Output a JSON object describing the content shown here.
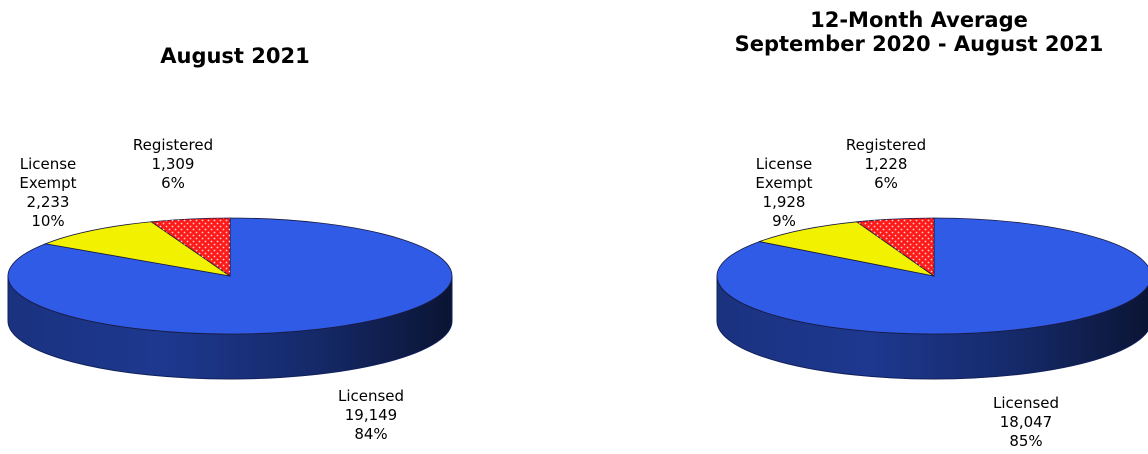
{
  "chart_data": [
    {
      "type": "pie",
      "title": [
        "August 2021"
      ],
      "slices": [
        {
          "name": "Licensed",
          "line1": "Licensed",
          "line2": "",
          "value": 19149,
          "value_label": "19,149",
          "percent_label": "84%",
          "color": "#2f5be6"
        },
        {
          "name": "License Exempt",
          "line1": "License",
          "line2": "Exempt",
          "value": 2233,
          "value_label": "2,233",
          "percent_label": "10%",
          "color": "#f2f200"
        },
        {
          "name": "Registered",
          "line1": "Registered",
          "line2": "",
          "value": 1309,
          "value_label": "1,309",
          "percent_label": "6%",
          "color": "#ff1a1a"
        }
      ]
    },
    {
      "type": "pie",
      "title": [
        "12-Month Average",
        "September 2020 - August 2021"
      ],
      "slices": [
        {
          "name": "Licensed",
          "line1": "Licensed",
          "line2": "",
          "value": 18047,
          "value_label": "18,047",
          "percent_label": "85%",
          "color": "#2f5be6"
        },
        {
          "name": "License Exempt",
          "line1": "License",
          "line2": "Exempt",
          "value": 1928,
          "value_label": "1,928",
          "percent_label": "9%",
          "color": "#f2f200"
        },
        {
          "name": "Registered",
          "line1": "Registered",
          "line2": "",
          "value": 1228,
          "value_label": "1,228",
          "percent_label": "6%",
          "color": "#ff1a1a"
        }
      ]
    }
  ]
}
